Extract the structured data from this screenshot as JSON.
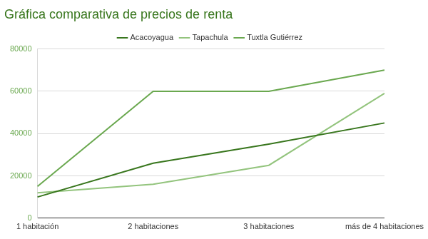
{
  "chart_data": {
    "type": "line",
    "title": "Gráfica comparativa de precios de renta",
    "categories": [
      "1 habitación",
      "2 habitaciones",
      "3 habitaciones",
      "más de 4 habitaciones"
    ],
    "series": [
      {
        "name": "Acacoyagua",
        "color": "#38761d",
        "values": [
          10000,
          26000,
          35000,
          45000
        ]
      },
      {
        "name": "Tapachula",
        "color": "#93c47d",
        "values": [
          12000,
          16000,
          25000,
          59000
        ]
      },
      {
        "name": "Tuxtla Gutiérrez",
        "color": "#6aa84f",
        "values": [
          15000,
          60000,
          60000,
          70000
        ]
      }
    ],
    "ylim": [
      0,
      80000
    ],
    "yticks": [
      0,
      20000,
      40000,
      60000,
      80000
    ],
    "grid": true,
    "legend": "top",
    "marker": "none"
  }
}
